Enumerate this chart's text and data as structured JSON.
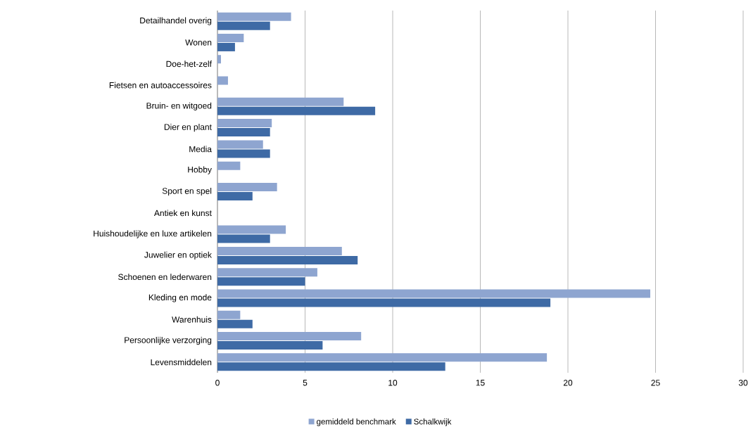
{
  "chart_data": {
    "type": "bar",
    "orientation": "horizontal",
    "categories": [
      "Detailhandel overig",
      "Wonen",
      "Doe-het-zelf",
      "Fietsen en autoaccessoires",
      "Bruin- en witgoed",
      "Dier en plant",
      "Media",
      "Hobby",
      "Sport en spel",
      "Antiek en kunst",
      "Huishoudelijke en luxe artikelen",
      "Juwelier en optiek",
      "Schoenen en lederwaren",
      "Kleding en mode",
      "Warenhuis",
      "Persoonlijke verzorging",
      "Levensmiddelen"
    ],
    "series": [
      {
        "name": "gemiddeld benchmark",
        "color": "#8ea5d0",
        "values": [
          4.2,
          1.5,
          0.2,
          0.6,
          7.2,
          3.1,
          2.6,
          1.3,
          3.4,
          0,
          3.9,
          7.1,
          5.7,
          24.7,
          1.3,
          8.2,
          18.8
        ]
      },
      {
        "name": "Schalkwijk",
        "color": "#3e6aa5",
        "values": [
          3.0,
          1.0,
          0,
          0,
          9.0,
          3.0,
          3.0,
          0,
          2.0,
          0,
          3.0,
          8.0,
          5.0,
          19.0,
          2.0,
          6.0,
          13.0
        ]
      }
    ],
    "xlim": [
      0,
      30
    ],
    "xticks": [
      0,
      5,
      10,
      15,
      20,
      25,
      30
    ],
    "grid": "x",
    "legend": "bottom"
  }
}
